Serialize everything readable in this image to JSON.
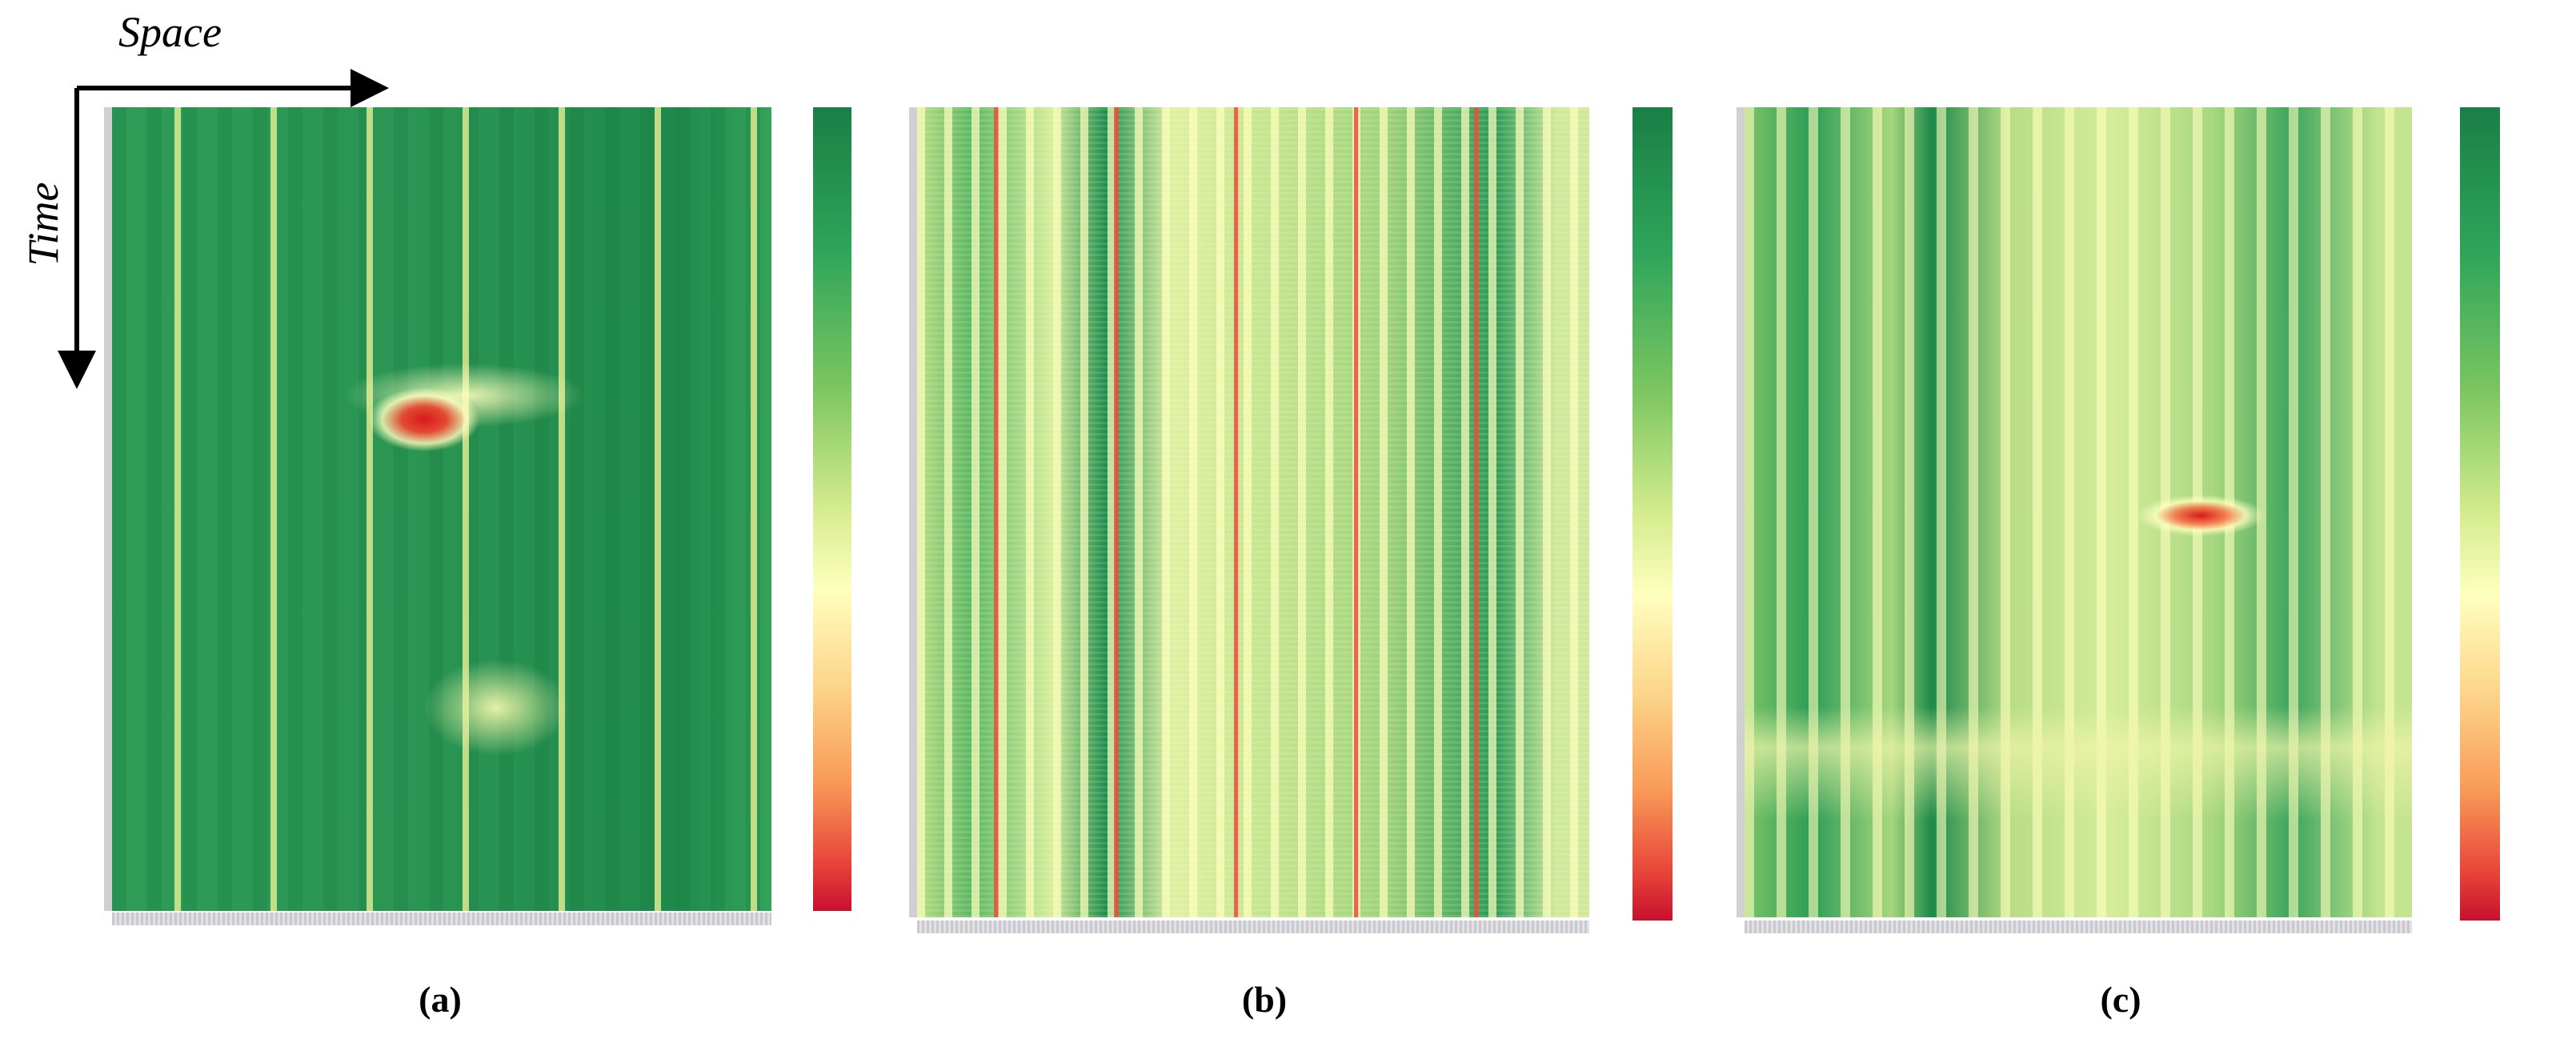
{
  "axes": {
    "x_label": "Space",
    "y_label": "Time"
  },
  "panels": [
    {
      "label": "(a)"
    },
    {
      "label": "(b)"
    },
    {
      "label": "(c)"
    }
  ]
}
